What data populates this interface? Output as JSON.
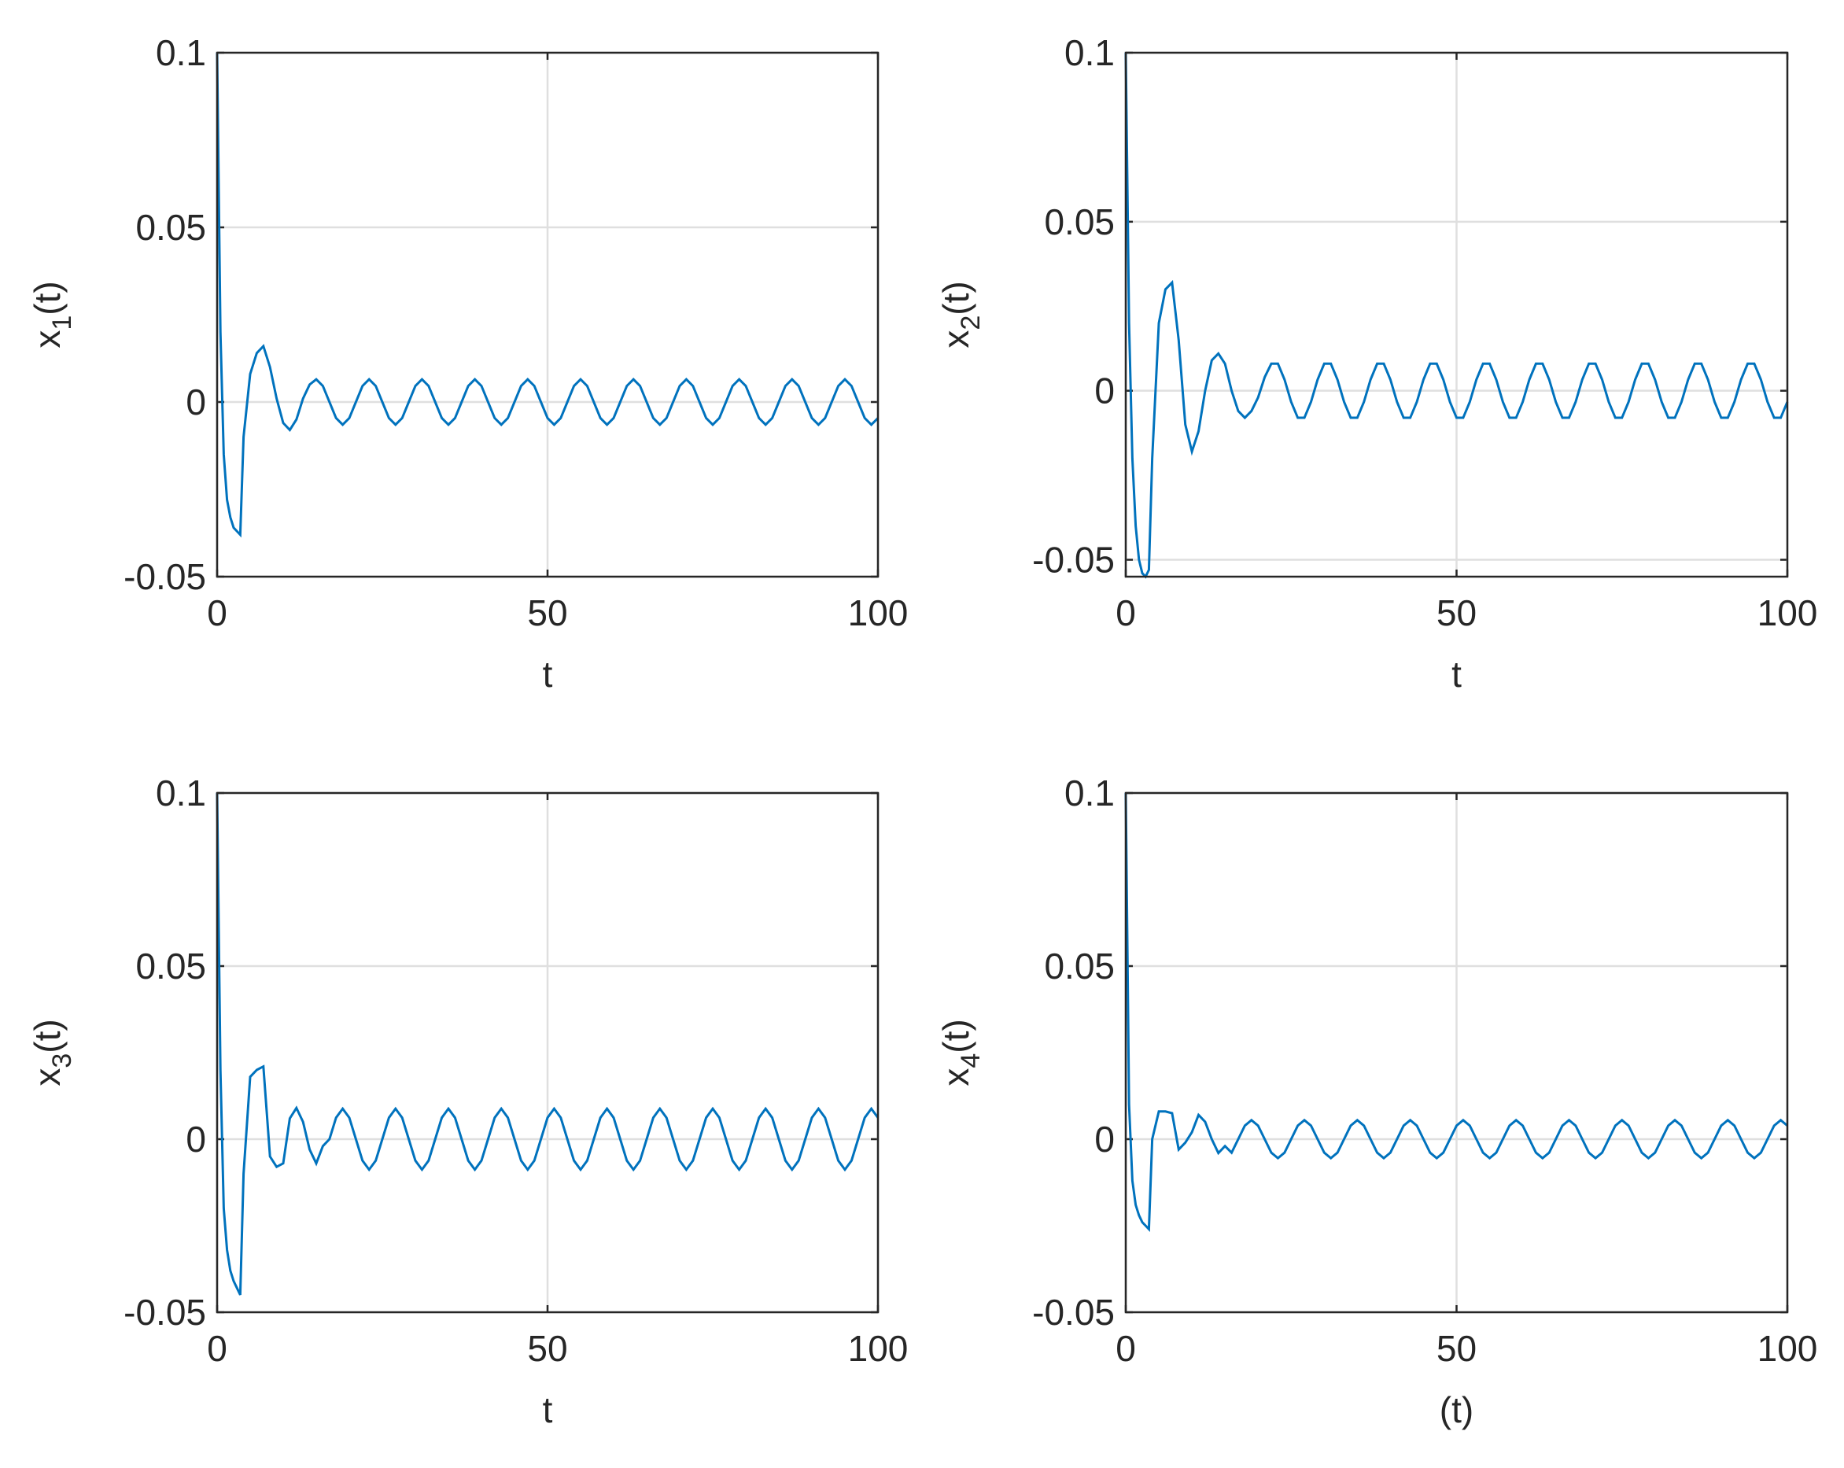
{
  "chart_data": [
    {
      "type": "line",
      "xlabel": "t",
      "ylabel": {
        "text": "x",
        "subscript": "1",
        "suffix": "(t)"
      },
      "xlim": [
        0,
        100
      ],
      "xticks": [
        0,
        50,
        100
      ],
      "ylim": [
        -0.05,
        0.1
      ],
      "yticks": [
        -0.05,
        0,
        0.05,
        0.1
      ],
      "grid": true,
      "color": "#0072bd",
      "x": [
        0,
        0.5,
        1,
        1.5,
        2,
        2.5,
        3,
        3.5,
        4,
        5,
        6,
        7,
        8,
        9,
        10,
        11,
        12,
        13,
        14,
        15,
        16,
        17,
        18,
        19,
        20,
        21,
        22,
        23,
        24,
        25,
        26,
        27,
        28,
        29,
        30,
        31,
        32,
        33,
        34,
        35,
        36,
        37,
        38,
        39,
        40,
        41,
        42,
        43,
        44,
        45,
        46,
        47,
        48,
        49,
        50,
        51,
        52,
        53,
        54,
        55,
        56,
        57,
        58,
        59,
        60,
        61,
        62,
        63,
        64,
        65,
        66,
        67,
        68,
        69,
        70,
        71,
        72,
        73,
        74,
        75,
        76,
        77,
        78,
        79,
        80,
        81,
        82,
        83,
        84,
        85,
        86,
        87,
        88,
        89,
        90,
        91,
        92,
        93,
        94,
        95,
        96,
        97,
        98,
        99,
        100
      ],
      "values": [
        0.1,
        0.02,
        -0.015,
        -0.028,
        -0.033,
        -0.036,
        -0.037,
        -0.038,
        -0.01,
        0.008,
        0.014,
        0.016,
        0.01,
        0.001,
        -0.006,
        -0.008,
        -0.005,
        0.001,
        0.005,
        0.0065,
        0.0046,
        0,
        -0.0046,
        -0.0065,
        -0.0046,
        0,
        0.0046,
        0.0065,
        0.0046,
        0,
        -0.0046,
        -0.0065,
        -0.0046,
        0,
        0.0046,
        0.0065,
        0.0046,
        0,
        -0.0046,
        -0.0065,
        -0.0046,
        0,
        0.0046,
        0.0065,
        0.0046,
        0,
        -0.0046,
        -0.0065,
        -0.0046,
        0,
        0.0046,
        0.0065,
        0.0046,
        0,
        -0.0046,
        -0.0065,
        -0.0046,
        0,
        0.0046,
        0.0065,
        0.0046,
        0,
        -0.0046,
        -0.0065,
        -0.0046,
        0,
        0.0046,
        0.0065,
        0.0046,
        0,
        -0.0046,
        -0.0065,
        -0.0046,
        0,
        0.0046,
        0.0065,
        0.0046,
        0,
        -0.0046,
        -0.0065,
        -0.0046,
        0,
        0.0046,
        0.0065,
        0.0046,
        0,
        -0.0046,
        -0.0065,
        -0.0046,
        0,
        0.0046,
        0.0065,
        0.0046,
        0,
        -0.0046,
        -0.0065,
        -0.0046,
        0,
        0.0046,
        0.0065,
        0.0046,
        0,
        -0.0046,
        -0.0065,
        -0.0046
      ]
    },
    {
      "type": "line",
      "xlabel": "t",
      "ylabel": {
        "text": "x",
        "subscript": "2",
        "suffix": "(t)"
      },
      "xlim": [
        0,
        100
      ],
      "xticks": [
        0,
        50,
        100
      ],
      "ylim": [
        -0.055,
        0.1
      ],
      "yticks": [
        -0.05,
        0,
        0.05,
        0.1
      ],
      "grid": true,
      "color": "#0072bd",
      "x": [
        0,
        0.5,
        1,
        1.5,
        2,
        2.5,
        3,
        3.5,
        4,
        5,
        6,
        7,
        8,
        9,
        10,
        11,
        12,
        13,
        14,
        15,
        16,
        17,
        18,
        19,
        20,
        21,
        22,
        23,
        24,
        25,
        26,
        27,
        28,
        29,
        30,
        31,
        32,
        33,
        34,
        35,
        36,
        37,
        38,
        39,
        40,
        41,
        42,
        43,
        44,
        45,
        46,
        47,
        48,
        49,
        50,
        51,
        52,
        53,
        54,
        55,
        56,
        57,
        58,
        59,
        60,
        61,
        62,
        63,
        64,
        65,
        66,
        67,
        68,
        69,
        70,
        71,
        72,
        73,
        74,
        75,
        76,
        77,
        78,
        79,
        80,
        81,
        82,
        83,
        84,
        85,
        86,
        87,
        88,
        89,
        90,
        91,
        92,
        93,
        94,
        95,
        96,
        97,
        98,
        99,
        100
      ],
      "values": [
        0.1,
        0.02,
        -0.02,
        -0.04,
        -0.05,
        -0.054,
        -0.055,
        -0.053,
        -0.02,
        0.02,
        0.03,
        0.032,
        0.015,
        -0.01,
        -0.018,
        -0.012,
        0,
        0.009,
        0.011,
        0.008,
        0,
        -0.006,
        -0.008,
        -0.006,
        -0.002,
        0.004,
        0.008,
        0.008,
        0.0033,
        -0.0033,
        -0.008,
        -0.008,
        -0.0033,
        0.0033,
        0.008,
        0.008,
        0.0033,
        -0.0033,
        -0.008,
        -0.008,
        -0.0033,
        0.0033,
        0.008,
        0.008,
        0.0033,
        -0.0033,
        -0.008,
        -0.008,
        -0.0033,
        0.0033,
        0.008,
        0.008,
        0.0033,
        -0.0033,
        -0.008,
        -0.008,
        -0.0033,
        0.0033,
        0.008,
        0.008,
        0.0033,
        -0.0033,
        -0.008,
        -0.008,
        -0.0033,
        0.0033,
        0.008,
        0.008,
        0.0033,
        -0.0033,
        -0.008,
        -0.008,
        -0.0033,
        0.0033,
        0.008,
        0.008,
        0.0033,
        -0.0033,
        -0.008,
        -0.008,
        -0.0033,
        0.0033,
        0.008,
        0.008,
        0.0033,
        -0.0033,
        -0.008,
        -0.008,
        -0.0033,
        0.0033,
        0.008,
        0.008,
        0.0033,
        -0.0033,
        -0.008,
        -0.008,
        -0.0033,
        0.0033,
        0.008,
        0.008,
        0.0033,
        -0.0033,
        -0.008,
        -0.008,
        -0.0033
      ]
    },
    {
      "type": "line",
      "xlabel": "t",
      "ylabel": {
        "text": "x",
        "subscript": "3",
        "suffix": "(t)"
      },
      "xlim": [
        0,
        100
      ],
      "xticks": [
        0,
        50,
        100
      ],
      "ylim": [
        -0.05,
        0.1
      ],
      "yticks": [
        -0.05,
        0,
        0.05,
        0.1
      ],
      "grid": true,
      "color": "#0072bd",
      "x": [
        0,
        0.5,
        1,
        1.5,
        2,
        2.5,
        3,
        3.5,
        4,
        5,
        6,
        7,
        8,
        9,
        10,
        11,
        12,
        13,
        14,
        15,
        16,
        17,
        18,
        19,
        20,
        21,
        22,
        23,
        24,
        25,
        26,
        27,
        28,
        29,
        30,
        31,
        32,
        33,
        34,
        35,
        36,
        37,
        38,
        39,
        40,
        41,
        42,
        43,
        44,
        45,
        46,
        47,
        48,
        49,
        50,
        51,
        52,
        53,
        54,
        55,
        56,
        57,
        58,
        59,
        60,
        61,
        62,
        63,
        64,
        65,
        66,
        67,
        68,
        69,
        70,
        71,
        72,
        73,
        74,
        75,
        76,
        77,
        78,
        79,
        80,
        81,
        82,
        83,
        84,
        85,
        86,
        87,
        88,
        89,
        90,
        91,
        92,
        93,
        94,
        95,
        96,
        97,
        98,
        99,
        100
      ],
      "values": [
        0.1,
        0.02,
        -0.02,
        -0.032,
        -0.038,
        -0.041,
        -0.043,
        -0.045,
        -0.01,
        0.018,
        0.02,
        0.021,
        -0.005,
        -0.008,
        -0.007,
        0.006,
        0.009,
        0.005,
        -0.003,
        -0.007,
        -0.002,
        0,
        0.0062,
        0.0088,
        0.0062,
        0,
        -0.0062,
        -0.0088,
        -0.0062,
        0,
        0.0062,
        0.0088,
        0.0062,
        0,
        -0.0062,
        -0.0088,
        -0.0062,
        0,
        0.0062,
        0.0088,
        0.0062,
        0,
        -0.0062,
        -0.0088,
        -0.0062,
        0,
        0.0062,
        0.0088,
        0.0062,
        0,
        -0.0062,
        -0.0088,
        -0.0062,
        0,
        0.0062,
        0.0088,
        0.0062,
        0,
        -0.0062,
        -0.0088,
        -0.0062,
        0,
        0.0062,
        0.0088,
        0.0062,
        0,
        -0.0062,
        -0.0088,
        -0.0062,
        0,
        0.0062,
        0.0088,
        0.0062,
        0,
        -0.0062,
        -0.0088,
        -0.0062,
        0,
        0.0062,
        0.0088,
        0.0062,
        0,
        -0.0062,
        -0.0088,
        -0.0062,
        0,
        0.0062,
        0.0088,
        0.0062,
        0,
        -0.0062,
        -0.0088,
        -0.0062,
        0,
        0.0062,
        0.0088,
        0.0062,
        0,
        -0.0062,
        -0.0088,
        -0.0062,
        0,
        0.0062,
        0.0088,
        0.0062
      ]
    },
    {
      "type": "line",
      "xlabel": "(t)",
      "ylabel": {
        "text": "x",
        "subscript": "4",
        "suffix": "(t)"
      },
      "xlim": [
        0,
        100
      ],
      "xticks": [
        0,
        50,
        100
      ],
      "ylim": [
        -0.05,
        0.1
      ],
      "yticks": [
        -0.05,
        0,
        0.05,
        0.1
      ],
      "grid": true,
      "color": "#0072bd",
      "x": [
        0,
        0.5,
        1,
        1.5,
        2,
        2.5,
        3,
        3.5,
        4,
        5,
        6,
        7,
        8,
        9,
        10,
        11,
        12,
        13,
        14,
        15,
        16,
        17,
        18,
        19,
        20,
        21,
        22,
        23,
        24,
        25,
        26,
        27,
        28,
        29,
        30,
        31,
        32,
        33,
        34,
        35,
        36,
        37,
        38,
        39,
        40,
        41,
        42,
        43,
        44,
        45,
        46,
        47,
        48,
        49,
        50,
        51,
        52,
        53,
        54,
        55,
        56,
        57,
        58,
        59,
        60,
        61,
        62,
        63,
        64,
        65,
        66,
        67,
        68,
        69,
        70,
        71,
        72,
        73,
        74,
        75,
        76,
        77,
        78,
        79,
        80,
        81,
        82,
        83,
        84,
        85,
        86,
        87,
        88,
        89,
        90,
        91,
        92,
        93,
        94,
        95,
        96,
        97,
        98,
        99,
        100
      ],
      "values": [
        0.1,
        0.01,
        -0.012,
        -0.019,
        -0.022,
        -0.024,
        -0.025,
        -0.026,
        0,
        0.008,
        0.008,
        0.0075,
        -0.003,
        -0.001,
        0.002,
        0.007,
        0.005,
        0,
        -0.004,
        -0.002,
        -0.0039,
        0,
        0.0039,
        0.0055,
        0.0039,
        0,
        -0.0039,
        -0.0055,
        -0.0039,
        0,
        0.0039,
        0.0055,
        0.0039,
        0,
        -0.0039,
        -0.0055,
        -0.0039,
        0,
        0.0039,
        0.0055,
        0.0039,
        0,
        -0.0039,
        -0.0055,
        -0.0039,
        0,
        0.0039,
        0.0055,
        0.0039,
        0,
        -0.0039,
        -0.0055,
        -0.0039,
        0,
        0.0039,
        0.0055,
        0.0039,
        0,
        -0.0039,
        -0.0055,
        -0.0039,
        0,
        0.0039,
        0.0055,
        0.0039,
        0,
        -0.0039,
        -0.0055,
        -0.0039,
        0,
        0.0039,
        0.0055,
        0.0039,
        0,
        -0.0039,
        -0.0055,
        -0.0039,
        0,
        0.0039,
        0.0055,
        0.0039,
        0,
        -0.0039,
        -0.0055,
        -0.0039,
        0,
        0.0039,
        0.0055,
        0.0039,
        0,
        -0.0039,
        -0.0055,
        -0.0039,
        0,
        0.0039,
        0.0055,
        0.0039,
        0,
        -0.0039,
        -0.0055,
        -0.0039,
        0,
        0.0039,
        0.0055,
        0.0039
      ]
    }
  ]
}
